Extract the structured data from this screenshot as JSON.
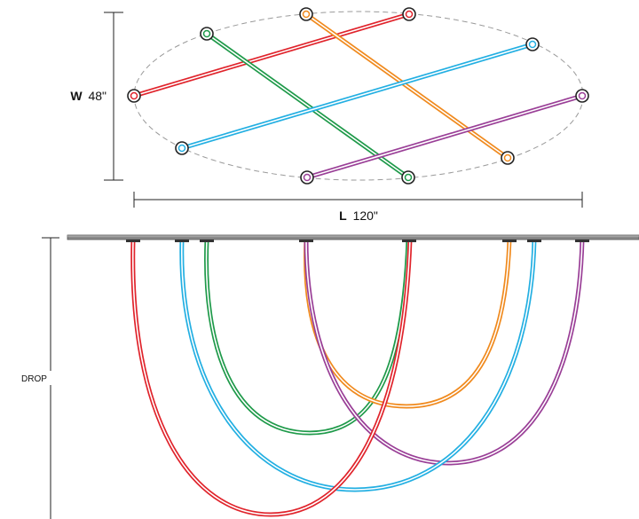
{
  "dimensions": {
    "width": {
      "letter": "W",
      "value": "48\""
    },
    "length": {
      "letter": "L",
      "value": "120\""
    },
    "drop_label": "DROP"
  },
  "colors": {
    "red": "#e0242c",
    "green": "#1f9a4a",
    "orange": "#f08a1e",
    "blue": "#23afe2",
    "purple": "#9a3f97",
    "rail": "#8a8a8a",
    "ellipse": "#9a9a9a",
    "dim_line": "#222222"
  },
  "tubes": [
    {
      "name": "red",
      "color_key": "red"
    },
    {
      "name": "green",
      "color_key": "green"
    },
    {
      "name": "orange",
      "color_key": "orange"
    },
    {
      "name": "blue",
      "color_key": "blue"
    },
    {
      "name": "purple",
      "color_key": "purple"
    }
  ]
}
